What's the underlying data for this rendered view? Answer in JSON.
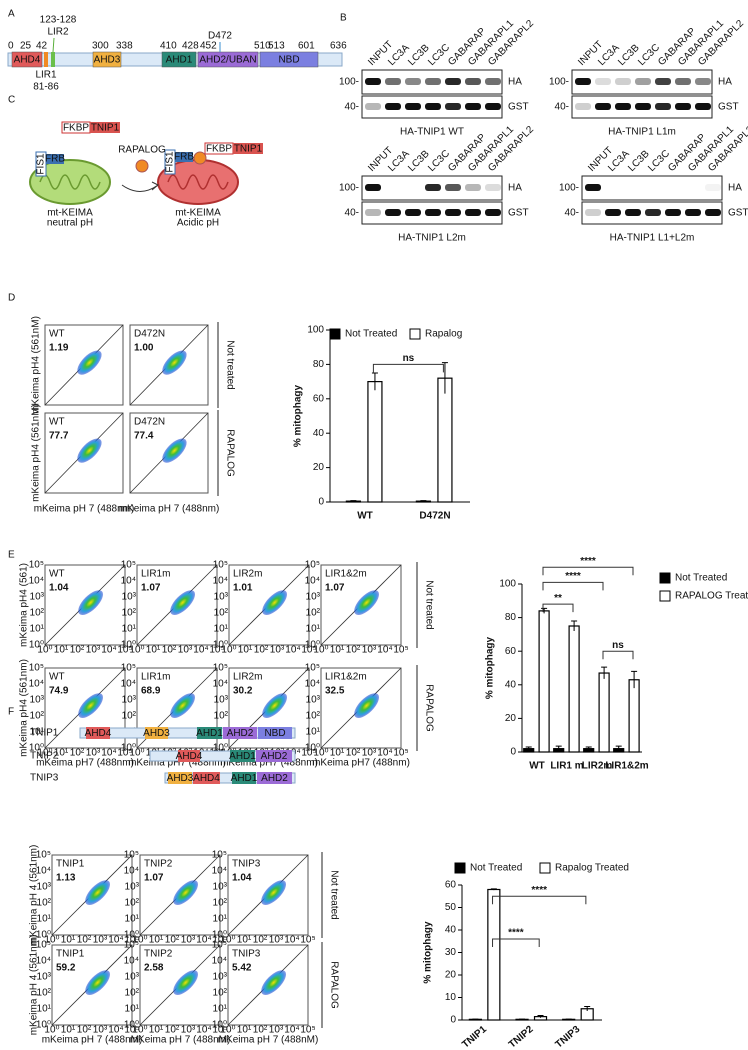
{
  "panel_a": {
    "label": "A",
    "positions": [
      "0",
      "25",
      "42",
      "300",
      "338",
      "410",
      "428",
      "452",
      "510",
      "513",
      "601",
      "636"
    ],
    "lir2_range": "123-128",
    "lir2": "LIR2",
    "lir1": "LIR1",
    "lir1_range": "81-86",
    "site": "D472",
    "domains": [
      "AHD4",
      "AHD3",
      "AHD1",
      "AHD2/UBAN",
      "NBD"
    ]
  },
  "panel_b": {
    "label": "B",
    "lanes": [
      "INPUT",
      "LC3A",
      "LC3B",
      "LC3C",
      "GABARAP",
      "GABARAPL1",
      "GABARAPL2"
    ],
    "markers": [
      "100-",
      "40-"
    ],
    "bands": [
      "HA",
      "GST"
    ],
    "blots": [
      "HA-TNIP1 WT",
      "HA-TNIP1 L1m",
      "HA-TNIP1 L2m",
      "HA-TNIP1 L1+L2m"
    ]
  },
  "panel_c": {
    "label": "C",
    "fkbp": "FKBP",
    "tnip1": "TNIP1",
    "fis1": "FIS1",
    "frb": "FRB",
    "rapalog": "RAPALOG",
    "neutral": [
      "mt-KEIMA",
      "neutral pH"
    ],
    "acidic": [
      "mt-KEIMA",
      "Acidic pH"
    ]
  },
  "panel_d": {
    "label": "D",
    "plots": [
      {
        "name": "WT",
        "value": "1.19"
      },
      {
        "name": "D472N",
        "value": "1.00"
      },
      {
        "name": "WT",
        "value": "77.7"
      },
      {
        "name": "D472N",
        "value": "77.4"
      }
    ],
    "conditions": [
      "Not treated",
      "RAPALOG"
    ],
    "ylabels": [
      "mKeima pH4 (561nM)",
      "mKeima pH4 (561nM)"
    ],
    "xlabel": "mKeima pH 7 (488nm)"
  },
  "panel_e": {
    "label": "E",
    "plots": [
      {
        "name": "WT",
        "value": "1.04"
      },
      {
        "name": "LIR1m",
        "value": "1.07"
      },
      {
        "name": "LIR2m",
        "value": "1.01"
      },
      {
        "name": "LIR1&2m",
        "value": "1.07"
      },
      {
        "name": "WT",
        "value": "74.9"
      },
      {
        "name": "LIR1m",
        "value": "68.9"
      },
      {
        "name": "LIR2m",
        "value": "30.2"
      },
      {
        "name": "LIR1&2m",
        "value": "32.5"
      }
    ],
    "conditions": [
      "Not treated",
      "RAPALOG"
    ],
    "ylabels": [
      "mKeima pH4 (561)",
      "mKeima pH4 (561nm)"
    ],
    "xlabel": "mKeima pH7 (488nm)",
    "flow_ticks": [
      "10⁰",
      "10¹",
      "10²",
      "10³",
      "10⁴",
      "10⁵"
    ]
  },
  "panel_f": {
    "label": "F",
    "constructs": [
      {
        "name": "TNIP1",
        "domains": [
          "AHD4",
          "AHD3",
          "AHD1",
          "AHD2",
          "NBD"
        ]
      },
      {
        "name": "TNIP2",
        "domains": [
          "AHD4",
          "AHD1",
          "AHD2"
        ]
      },
      {
        "name": "TNIP3",
        "domains": [
          "AHD3",
          "AHD4",
          "AHD1",
          "AHD2"
        ]
      }
    ],
    "plots": [
      {
        "name": "TNIP1",
        "value": "1.13"
      },
      {
        "name": "TNIP2",
        "value": "1.07"
      },
      {
        "name": "TNIP3",
        "value": "1.04"
      },
      {
        "name": "TNIP1",
        "value": "59.2"
      },
      {
        "name": "TNIP2",
        "value": "2.58"
      },
      {
        "name": "TNIP3",
        "value": "5.42"
      }
    ],
    "conditions": [
      "Not treated",
      "RAPALOG"
    ],
    "ylabels": [
      "mKeima pH 4 (561nm)",
      "mKeima pH 4 (561nm)"
    ],
    "xlabel": "mKeima pH 7 (488nM)",
    "flow_ticks": [
      "10⁰",
      "10¹",
      "10²",
      "10³",
      "10⁴",
      "10⁵"
    ]
  },
  "chart_data": [
    {
      "type": "bar",
      "ylabel": "% mitophagy",
      "categories": [
        "WT",
        "D472N"
      ],
      "series": [
        {
          "name": "Not Treated",
          "color": "#000000",
          "values": [
            0.5,
            0.5
          ],
          "errors": [
            0.3,
            0.3
          ]
        },
        {
          "name": "Rapalog",
          "color": "#ffffff",
          "values": [
            70,
            72
          ],
          "errors": [
            5,
            9
          ]
        }
      ],
      "ylim": [
        0,
        100
      ],
      "yticks": [
        0,
        20,
        40,
        60,
        80,
        100
      ],
      "significance": [
        "ns"
      ]
    },
    {
      "type": "bar",
      "ylabel": "% mitophagy",
      "categories": [
        "WT",
        "LIR1 m",
        "LIR2m",
        "LIR1&2m"
      ],
      "series": [
        {
          "name": "Not Treated",
          "color": "#000000",
          "values": [
            2,
            2,
            2,
            2
          ],
          "errors": [
            1,
            1.5,
            1,
            1.5
          ]
        },
        {
          "name": "RAPALOG Treated",
          "color": "#ffffff",
          "values": [
            84,
            75,
            47,
            43
          ],
          "errors": [
            1.5,
            3,
            3.5,
            5
          ]
        }
      ],
      "ylim": [
        0,
        100
      ],
      "yticks": [
        0,
        20,
        40,
        60,
        80,
        100
      ],
      "significance": [
        "**",
        "****",
        "****",
        "ns"
      ]
    },
    {
      "type": "bar",
      "ylabel": "% mitophagy",
      "categories": [
        "TNIP1",
        "TNIP2",
        "TNIP3"
      ],
      "series": [
        {
          "name": "Not Treated",
          "color": "#000000",
          "values": [
            0.3,
            0.3,
            0.3
          ],
          "errors": [
            0.1,
            0.1,
            0.1
          ]
        },
        {
          "name": "Rapalog Treated",
          "color": "#ffffff",
          "values": [
            58,
            1.5,
            5
          ],
          "errors": [
            0.3,
            0.5,
            1
          ]
        }
      ],
      "ylim": [
        0,
        60
      ],
      "yticks": [
        0,
        10,
        20,
        30,
        40,
        50,
        60
      ],
      "significance": [
        "****",
        "****"
      ]
    }
  ]
}
